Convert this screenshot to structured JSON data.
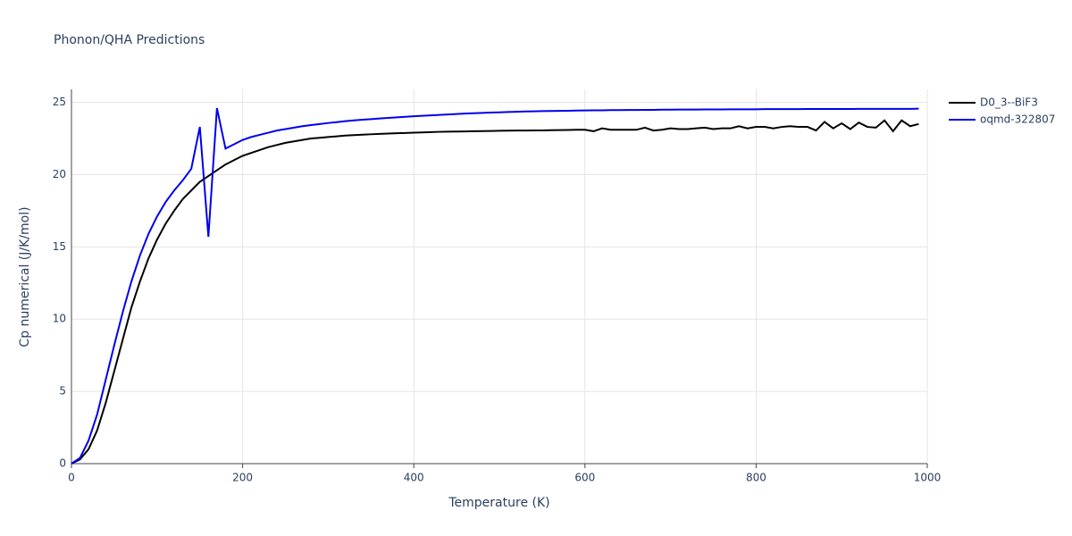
{
  "chart_data": {
    "type": "line",
    "title": "Phonon/QHA Predictions",
    "x_label": "Temperature (K)",
    "y_label": "Cp numerical (J/K/mol)",
    "x": [
      0,
      10,
      20,
      30,
      40,
      50,
      60,
      70,
      80,
      90,
      100,
      110,
      120,
      130,
      140,
      150,
      160,
      170,
      180,
      190,
      200,
      210,
      220,
      230,
      240,
      250,
      260,
      270,
      280,
      290,
      300,
      310,
      320,
      330,
      340,
      350,
      360,
      370,
      380,
      390,
      400,
      410,
      420,
      430,
      440,
      450,
      460,
      470,
      480,
      490,
      500,
      510,
      520,
      530,
      540,
      550,
      560,
      570,
      580,
      590,
      600,
      610,
      620,
      630,
      640,
      650,
      660,
      670,
      680,
      690,
      700,
      710,
      720,
      730,
      740,
      750,
      760,
      770,
      780,
      790,
      800,
      810,
      820,
      830,
      840,
      850,
      860,
      870,
      880,
      890,
      900,
      910,
      920,
      930,
      940,
      950,
      960,
      970,
      980,
      990
    ],
    "series": [
      {
        "name": "D0_3--BiF3",
        "color": "#000000",
        "values": [
          0,
          0.3,
          1.0,
          2.3,
          4.2,
          6.4,
          8.6,
          10.8,
          12.6,
          14.2,
          15.5,
          16.6,
          17.5,
          18.3,
          18.9,
          19.5,
          19.9,
          20.3,
          20.7,
          21.0,
          21.3,
          21.5,
          21.7,
          21.9,
          22.05,
          22.2,
          22.3,
          22.4,
          22.5,
          22.55,
          22.6,
          22.65,
          22.7,
          22.73,
          22.76,
          22.79,
          22.82,
          22.84,
          22.86,
          22.88,
          22.9,
          22.92,
          22.94,
          22.96,
          22.97,
          22.98,
          22.99,
          23.0,
          23.01,
          23.02,
          23.03,
          23.04,
          23.05,
          23.05,
          23.06,
          23.06,
          23.07,
          23.08,
          23.09,
          23.1,
          23.1,
          23.0,
          23.2,
          23.1,
          23.1,
          23.1,
          23.1,
          23.25,
          23.05,
          23.1,
          23.2,
          23.15,
          23.15,
          23.2,
          23.25,
          23.15,
          23.2,
          23.2,
          23.35,
          23.2,
          23.3,
          23.3,
          23.2,
          23.3,
          23.35,
          23.3,
          23.3,
          23.05,
          23.65,
          23.2,
          23.55,
          23.15,
          23.6,
          23.3,
          23.25,
          23.75,
          23.0,
          23.75,
          23.35,
          23.5
        ]
      },
      {
        "name": "oqmd-322807",
        "color": "#0000ee",
        "values": [
          0,
          0.4,
          1.6,
          3.4,
          5.8,
          8.2,
          10.5,
          12.6,
          14.4,
          15.9,
          17.1,
          18.1,
          18.9,
          19.6,
          20.4,
          23.3,
          15.7,
          24.6,
          21.8,
          22.1,
          22.4,
          22.6,
          22.75,
          22.9,
          23.05,
          23.15,
          23.25,
          23.35,
          23.43,
          23.5,
          23.57,
          23.63,
          23.7,
          23.75,
          23.8,
          23.84,
          23.88,
          23.92,
          23.96,
          24.0,
          24.04,
          24.07,
          24.1,
          24.13,
          24.16,
          24.19,
          24.22,
          24.25,
          24.27,
          24.29,
          24.31,
          24.33,
          24.35,
          24.37,
          24.38,
          24.39,
          24.4,
          24.41,
          24.42,
          24.43,
          24.44,
          24.45,
          24.45,
          24.46,
          24.46,
          24.47,
          24.47,
          24.48,
          24.48,
          24.49,
          24.49,
          24.5,
          24.5,
          24.5,
          24.51,
          24.51,
          24.51,
          24.52,
          24.52,
          24.52,
          24.52,
          24.53,
          24.53,
          24.53,
          24.53,
          24.53,
          24.54,
          24.54,
          24.54,
          24.54,
          24.54,
          24.54,
          24.55,
          24.55,
          24.55,
          24.55,
          24.55,
          24.55,
          24.55,
          24.56
        ]
      }
    ],
    "xlim": [
      0,
      1000
    ],
    "ylim": [
      0,
      25.9
    ],
    "xticks": [
      0,
      200,
      400,
      600,
      800,
      1000
    ],
    "yticks": [
      0,
      5,
      10,
      15,
      20,
      25
    ],
    "grid": true
  }
}
